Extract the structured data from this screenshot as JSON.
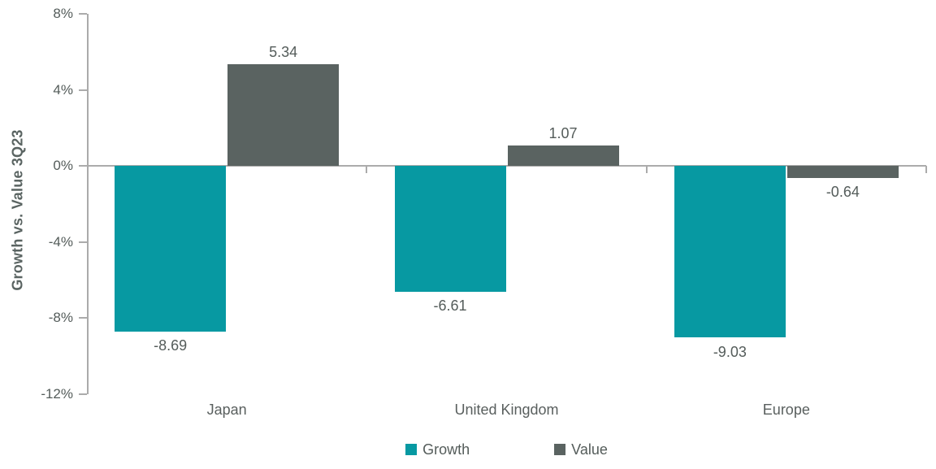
{
  "chart_data": {
    "type": "bar",
    "title": "",
    "ylabel": "Growth vs. Value 3Q23",
    "xlabel": "",
    "categories": [
      "Japan",
      "United Kingdom",
      "Europe"
    ],
    "series": [
      {
        "name": "Growth",
        "color": "#0799A2",
        "values": [
          -8.69,
          -6.61,
          -9.03
        ]
      },
      {
        "name": "Value",
        "color": "#5A6361",
        "values": [
          5.34,
          1.07,
          -0.64
        ]
      }
    ],
    "data_labels": [
      [
        "-8.69",
        "-6.61",
        "-9.03"
      ],
      [
        "5.34",
        "1.07",
        "-0.64"
      ]
    ],
    "ylim": [
      -12,
      8
    ],
    "ytick_values": [
      8,
      4,
      0,
      -4,
      -8,
      -12
    ],
    "ytick_labels": [
      "8%",
      "4%",
      "0%",
      "-4%",
      "-8%",
      "-12%"
    ],
    "grid": false,
    "legend_position": "bottom"
  },
  "colors": {
    "axis_line": "#ABABAB",
    "label_text": "#545C5A",
    "growth": "#0799A2",
    "value": "#5A6361"
  }
}
